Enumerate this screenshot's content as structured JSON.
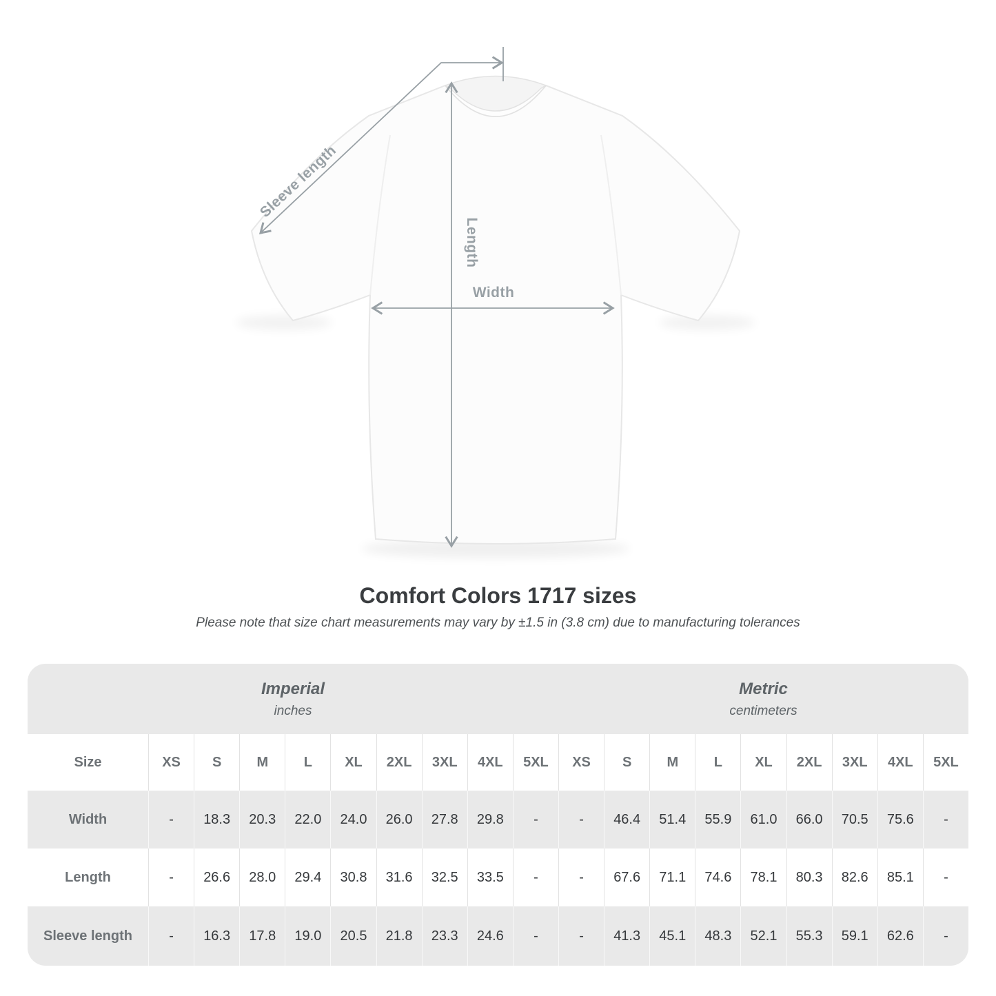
{
  "diagram": {
    "labels": {
      "sleeve": "Sleeve length",
      "length": "Length",
      "width": "Width"
    }
  },
  "title": "Comfort Colors 1717 sizes",
  "subtitle": "Please note that size chart measurements may vary by ±1.5 in (3.8 cm) due to manufacturing tolerances",
  "table": {
    "groups": [
      {
        "label": "Imperial",
        "unit": "inches"
      },
      {
        "label": "Metric",
        "unit": "centimeters"
      }
    ],
    "size_header": "Size",
    "sizes": [
      "XS",
      "S",
      "M",
      "L",
      "XL",
      "2XL",
      "3XL",
      "4XL",
      "5XL"
    ],
    "rows": [
      {
        "label": "Width",
        "imperial": [
          "-",
          "18.3",
          "20.3",
          "22.0",
          "24.0",
          "26.0",
          "27.8",
          "29.8",
          "-"
        ],
        "metric": [
          "-",
          "46.4",
          "51.4",
          "55.9",
          "61.0",
          "66.0",
          "70.5",
          "75.6",
          "-"
        ]
      },
      {
        "label": "Length",
        "imperial": [
          "-",
          "26.6",
          "28.0",
          "29.4",
          "30.8",
          "31.6",
          "32.5",
          "33.5",
          "-"
        ],
        "metric": [
          "-",
          "67.6",
          "71.1",
          "74.6",
          "78.1",
          "80.3",
          "82.6",
          "85.1",
          "-"
        ]
      },
      {
        "label": "Sleeve length",
        "imperial": [
          "-",
          "16.3",
          "17.8",
          "19.0",
          "20.5",
          "21.8",
          "23.3",
          "24.6",
          "-"
        ],
        "metric": [
          "-",
          "41.3",
          "45.1",
          "48.3",
          "52.1",
          "55.3",
          "59.1",
          "62.6",
          "-"
        ]
      }
    ]
  },
  "colors": {
    "row_gray": "#e9e9e9",
    "measure_gray": "#98a0a5",
    "value_text": "#36393c",
    "header_text": "#6d7276"
  }
}
